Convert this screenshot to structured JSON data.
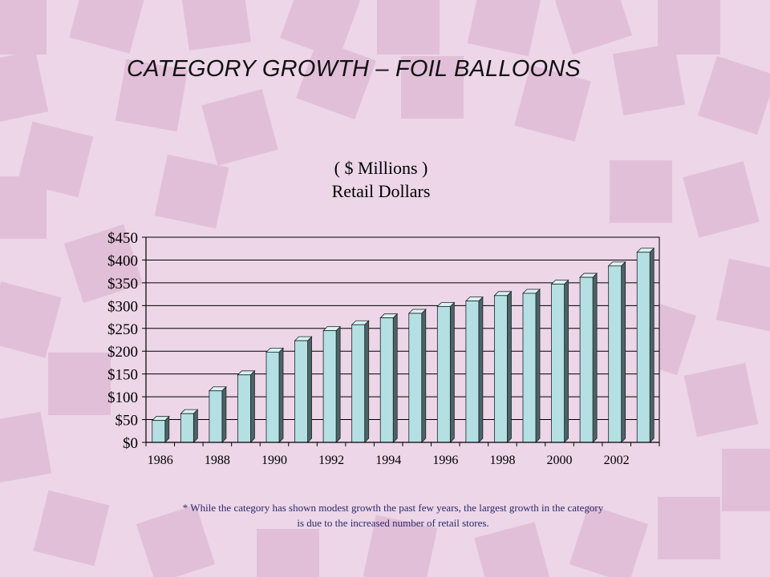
{
  "slide": {
    "title": "CATEGORY GROWTH – FOIL BALLOONS",
    "footnote_line1": "* While the category has shown modest growth the past few years, the largest growth in the category",
    "footnote_line2": "is due to the increased number of retail stores."
  },
  "colors": {
    "background": "#ecd6e8",
    "square": "#e2bfd8",
    "bar_front": "#b4e0e4",
    "bar_side": "#4a6468",
    "bar_top": "#d8f2f4",
    "plot_bg": "#ecd6e8"
  },
  "chart_data": {
    "type": "bar",
    "title_line1": "( $ Millions )",
    "title_line2": "Retail Dollars",
    "xlabel": "",
    "ylabel": "",
    "ylim": [
      0,
      450
    ],
    "ytick_step": 50,
    "ytick_prefix": "$",
    "grid": true,
    "legend": "none",
    "categories": [
      "1986",
      "1987",
      "1988",
      "1989",
      "1990",
      "1991",
      "1992",
      "1993",
      "1994",
      "1995",
      "1996",
      "1997",
      "1998",
      "1999",
      "2000",
      "2001",
      "2002",
      "2003"
    ],
    "xtick_labels": [
      "1986",
      "",
      "1988",
      "",
      "1990",
      "",
      "1992",
      "",
      "1994",
      "",
      "1996",
      "",
      "1998",
      "",
      "2000",
      "",
      "2002",
      ""
    ],
    "values": [
      48,
      63,
      113,
      148,
      198,
      223,
      245,
      258,
      273,
      283,
      298,
      310,
      322,
      327,
      347,
      362,
      387,
      417
    ]
  }
}
